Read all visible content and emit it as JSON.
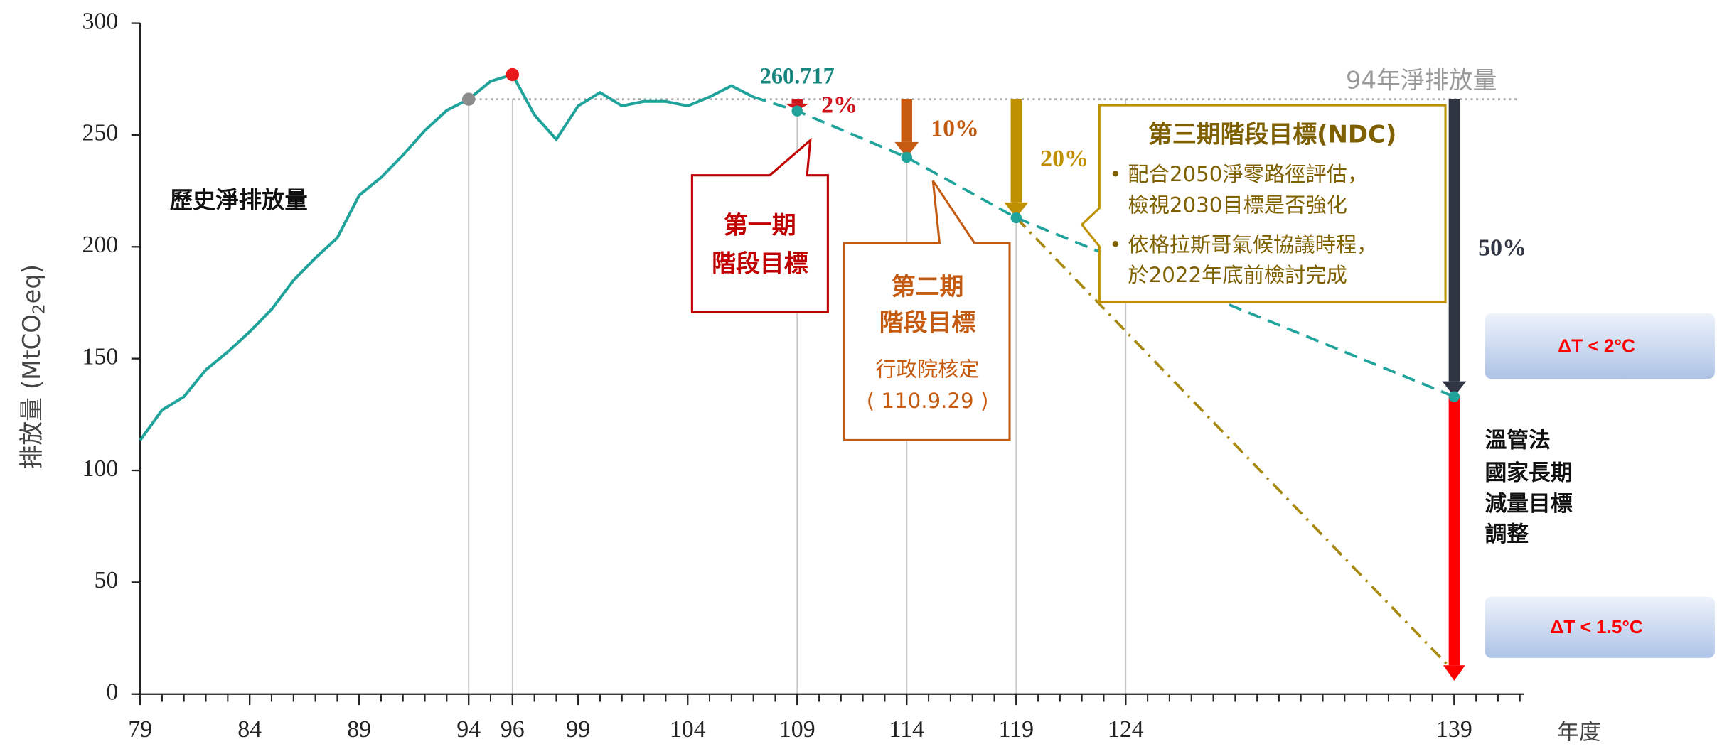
{
  "chart_data": {
    "type": "line",
    "y_label_parts": [
      "排放量 (MtCO",
      "2",
      "eq)"
    ],
    "x_label": "年度",
    "xlim": [
      79,
      142
    ],
    "ylim": [
      0,
      300
    ],
    "xticks": [
      79,
      84,
      89,
      94,
      96,
      99,
      104,
      109,
      114,
      119,
      124,
      139
    ],
    "yticks": [
      0,
      50,
      100,
      150,
      200,
      250,
      300
    ],
    "guides": [
      94,
      96,
      109,
      114,
      119,
      124
    ],
    "series": [
      {
        "name": "歷史淨排放量",
        "color": "#1fa39b",
        "style": "solid",
        "x": [
          79,
          80,
          81,
          82,
          83,
          84,
          85,
          86,
          87,
          88,
          89,
          90,
          91,
          92,
          93,
          94,
          95,
          96,
          97,
          98,
          99,
          100,
          101,
          102,
          103,
          104,
          105,
          106,
          107
        ],
        "values": [
          113.5,
          127,
          133,
          145,
          153,
          162,
          172,
          185,
          195,
          204,
          223,
          231,
          241,
          252,
          261,
          266,
          274,
          277,
          259,
          248,
          263,
          269,
          263,
          265,
          265,
          263,
          267,
          272,
          267
        ]
      },
      {
        "color": "#1fa39b",
        "style": "dashed",
        "x": [
          107,
          109,
          114,
          119,
          139
        ],
        "values": [
          267,
          260.717,
          240,
          213,
          133
        ]
      },
      {
        "color": "#a88a10",
        "style": "dashdot",
        "x": [
          119,
          139
        ],
        "values": [
          213,
          10
        ]
      }
    ],
    "reference": {
      "label": "94年淨排放量",
      "value": 266,
      "x": [
        94,
        139
      ],
      "color": "#999999"
    },
    "points": [
      {
        "x": 94,
        "value": 266,
        "color": "#8c8c8c"
      },
      {
        "x": 96,
        "value": 277,
        "color": "#e8191b"
      },
      {
        "x": 109,
        "value": 260.717,
        "color": "#1fa39b",
        "label": "260.717"
      },
      {
        "x": 114,
        "value": 240,
        "color": "#1fa39b"
      },
      {
        "x": 119,
        "value": 213,
        "color": "#1fa39b"
      },
      {
        "x": 139,
        "value": 133,
        "color": "#1fa39b"
      }
    ],
    "arrows": [
      {
        "x": 109,
        "from": 266,
        "to": 261,
        "label": "2%",
        "color": "#d0121b"
      },
      {
        "x": 114,
        "from": 266,
        "to": 240,
        "label": "10%",
        "color": "#c55a11"
      },
      {
        "x": 119,
        "from": 266,
        "to": 213,
        "label": "20%",
        "color": "#bf9000"
      },
      {
        "x": 139,
        "from": 266,
        "to": 133,
        "label": "50%",
        "color": "#2f3542"
      },
      {
        "x": 139,
        "from": 133,
        "to": 6,
        "color": "#ff0000"
      }
    ],
    "callouts": {
      "phase1": [
        "第一期",
        "階段目標"
      ],
      "phase2": [
        "第二期",
        "階段目標",
        "行政院核定",
        "( 110.9.29 )"
      ],
      "phase3": {
        "title": "第三期階段目標(NDC)",
        "bullets": [
          [
            "配合2050淨零路徑評估，",
            "檢視2030目標是否強化"
          ],
          [
            "依格拉斯哥氣候協議時程，",
            "於2022年底前檢討完成"
          ]
        ]
      },
      "law": [
        "溫管法",
        "國家長期",
        "減量目標",
        "調整"
      ],
      "targets": [
        "ΔT < 2°C",
        "ΔT < 1.5°C"
      ]
    }
  }
}
